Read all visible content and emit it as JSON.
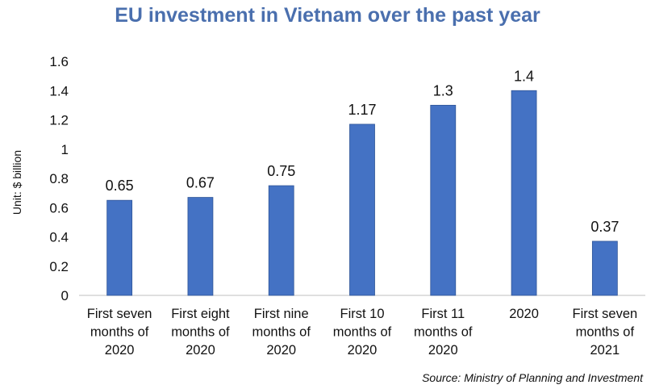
{
  "chart_data": {
    "type": "bar",
    "title": "EU investment in Vietnam over the past year",
    "ylabel": "Unit: $ billion",
    "xlabel": "",
    "ylim": [
      0,
      1.6
    ],
    "yticks": [
      "0",
      "0.2",
      "0.4",
      "0.6",
      "0.8",
      "1",
      "1.2",
      "1.4",
      "1.6"
    ],
    "ytick_values": [
      0,
      0.2,
      0.4,
      0.6,
      0.8,
      1.0,
      1.2,
      1.4,
      1.6
    ],
    "categories": [
      [
        "First seven",
        "months of",
        "2020"
      ],
      [
        "First eight",
        "months of",
        "2020"
      ],
      [
        "First nine",
        "months of",
        "2020"
      ],
      [
        "First 10",
        "months of",
        "2020"
      ],
      [
        "First 11",
        "months of",
        "2020"
      ],
      [
        "2020"
      ],
      [
        "First seven",
        "months of",
        "2021"
      ]
    ],
    "values": [
      0.65,
      0.67,
      0.75,
      1.17,
      1.3,
      1.4,
      0.37
    ],
    "data_labels": [
      "0.65",
      "0.67",
      "0.75",
      "1.17",
      "1.3",
      "1.4",
      "0.37"
    ],
    "bar_color": "#4472c4",
    "title_color": "#4a6fae",
    "source": "Source: Ministry of Planning and Investment"
  }
}
